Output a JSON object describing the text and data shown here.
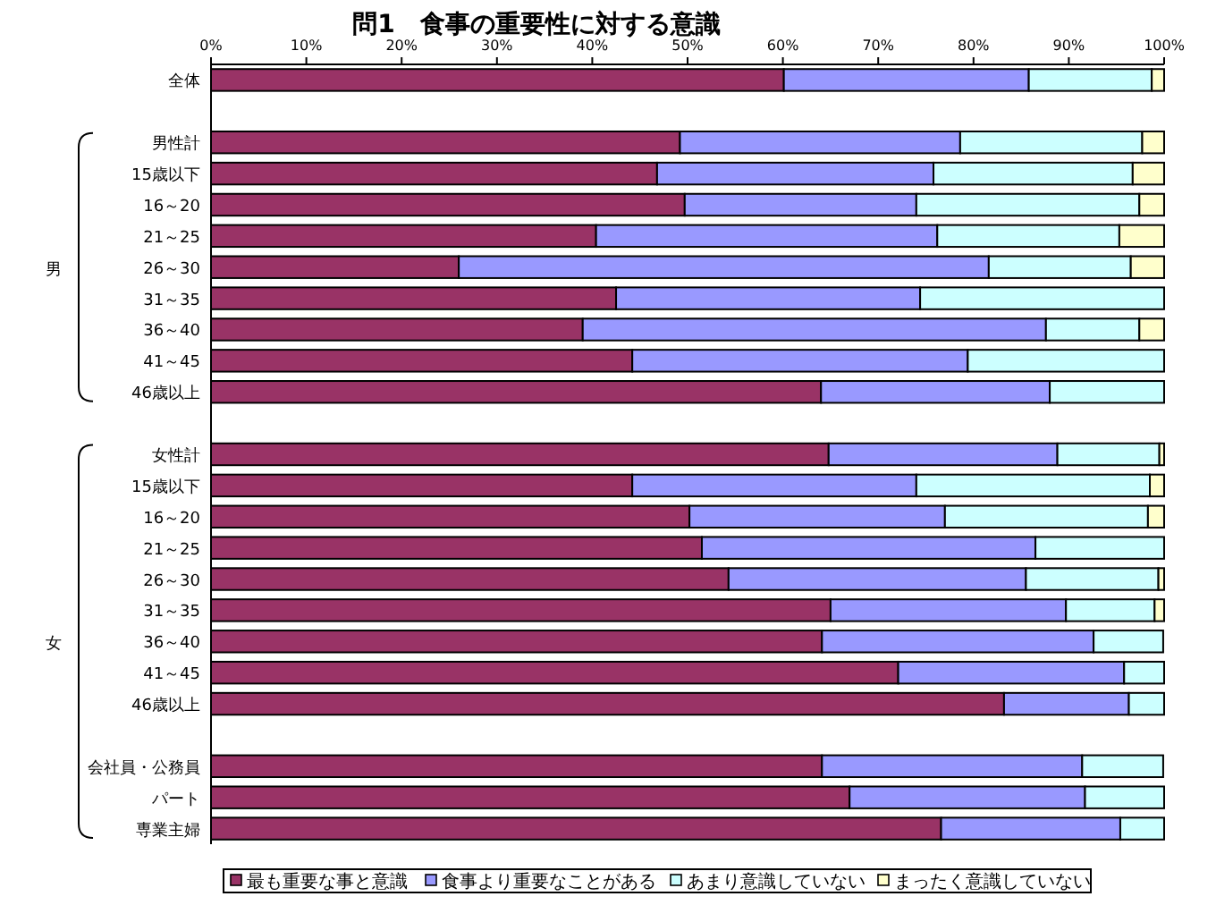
{
  "chart_data": {
    "type": "bar",
    "orientation": "horizontal",
    "stacked": true,
    "title": "問1　食事の重要性に対する意識",
    "categories": [
      "全体",
      null,
      "男性計",
      "15歳以下",
      "16～20",
      "21～25",
      "26～30",
      "31～35",
      "36～40",
      "41～45",
      "46歳以上",
      null,
      "女性計",
      "15歳以下",
      "16～20",
      "21～25",
      "26～30",
      "31～35",
      "36～40",
      "41～45",
      "46歳以上",
      null,
      "会社員・公務員",
      "パート",
      "専業主婦"
    ],
    "series": [
      {
        "name": "最も重要な事と意識",
        "color": "#993366",
        "values": [
          60.1,
          null,
          49.2,
          46.8,
          49.7,
          40.4,
          26.0,
          42.5,
          39.0,
          44.2,
          64.0,
          null,
          64.8,
          44.2,
          50.2,
          51.5,
          54.3,
          65.0,
          64.1,
          72.1,
          83.2,
          null,
          64.1,
          67.0,
          76.6
        ]
      },
      {
        "name": "食事より重要なことがある",
        "color": "#9999ff",
        "values": [
          25.7,
          null,
          29.4,
          29.0,
          24.3,
          35.8,
          55.6,
          31.9,
          48.6,
          35.2,
          24.0,
          null,
          24.0,
          29.8,
          26.8,
          35.0,
          31.2,
          24.7,
          28.5,
          23.7,
          13.1,
          null,
          27.3,
          24.7,
          18.8
        ]
      },
      {
        "name": "あまり意識していない",
        "color": "#ccffff",
        "values": [
          12.9,
          null,
          19.1,
          20.9,
          23.4,
          19.1,
          14.9,
          25.6,
          9.8,
          20.6,
          12.0,
          null,
          10.7,
          24.5,
          21.3,
          13.5,
          13.9,
          9.3,
          7.3,
          4.2,
          3.7,
          null,
          8.5,
          8.3,
          4.6
        ]
      },
      {
        "name": "まったく意識していない",
        "color": "#ffffcc",
        "values": [
          1.3,
          null,
          2.3,
          3.3,
          2.6,
          4.7,
          3.5,
          0,
          2.6,
          0,
          0,
          null,
          0.5,
          1.5,
          1.7,
          0,
          0.6,
          1.0,
          null,
          0,
          0,
          null,
          null,
          0,
          0
        ]
      }
    ],
    "xlim": [
      0,
      100
    ],
    "xticks": [
      {
        "value": 0,
        "label": "0%"
      },
      {
        "value": 10,
        "label": "10%"
      },
      {
        "value": 20,
        "label": "20%"
      },
      {
        "value": 30,
        "label": "30%"
      },
      {
        "value": 40,
        "label": "40%"
      },
      {
        "value": 50,
        "label": "50%"
      },
      {
        "value": 60,
        "label": "60%"
      },
      {
        "value": 70,
        "label": "70%"
      },
      {
        "value": 80,
        "label": "80%"
      },
      {
        "value": 90,
        "label": "90%"
      },
      {
        "value": 100,
        "label": "100%"
      }
    ],
    "annotations": [
      "男",
      "女"
    ],
    "legend": "bottom",
    "grid": false
  }
}
